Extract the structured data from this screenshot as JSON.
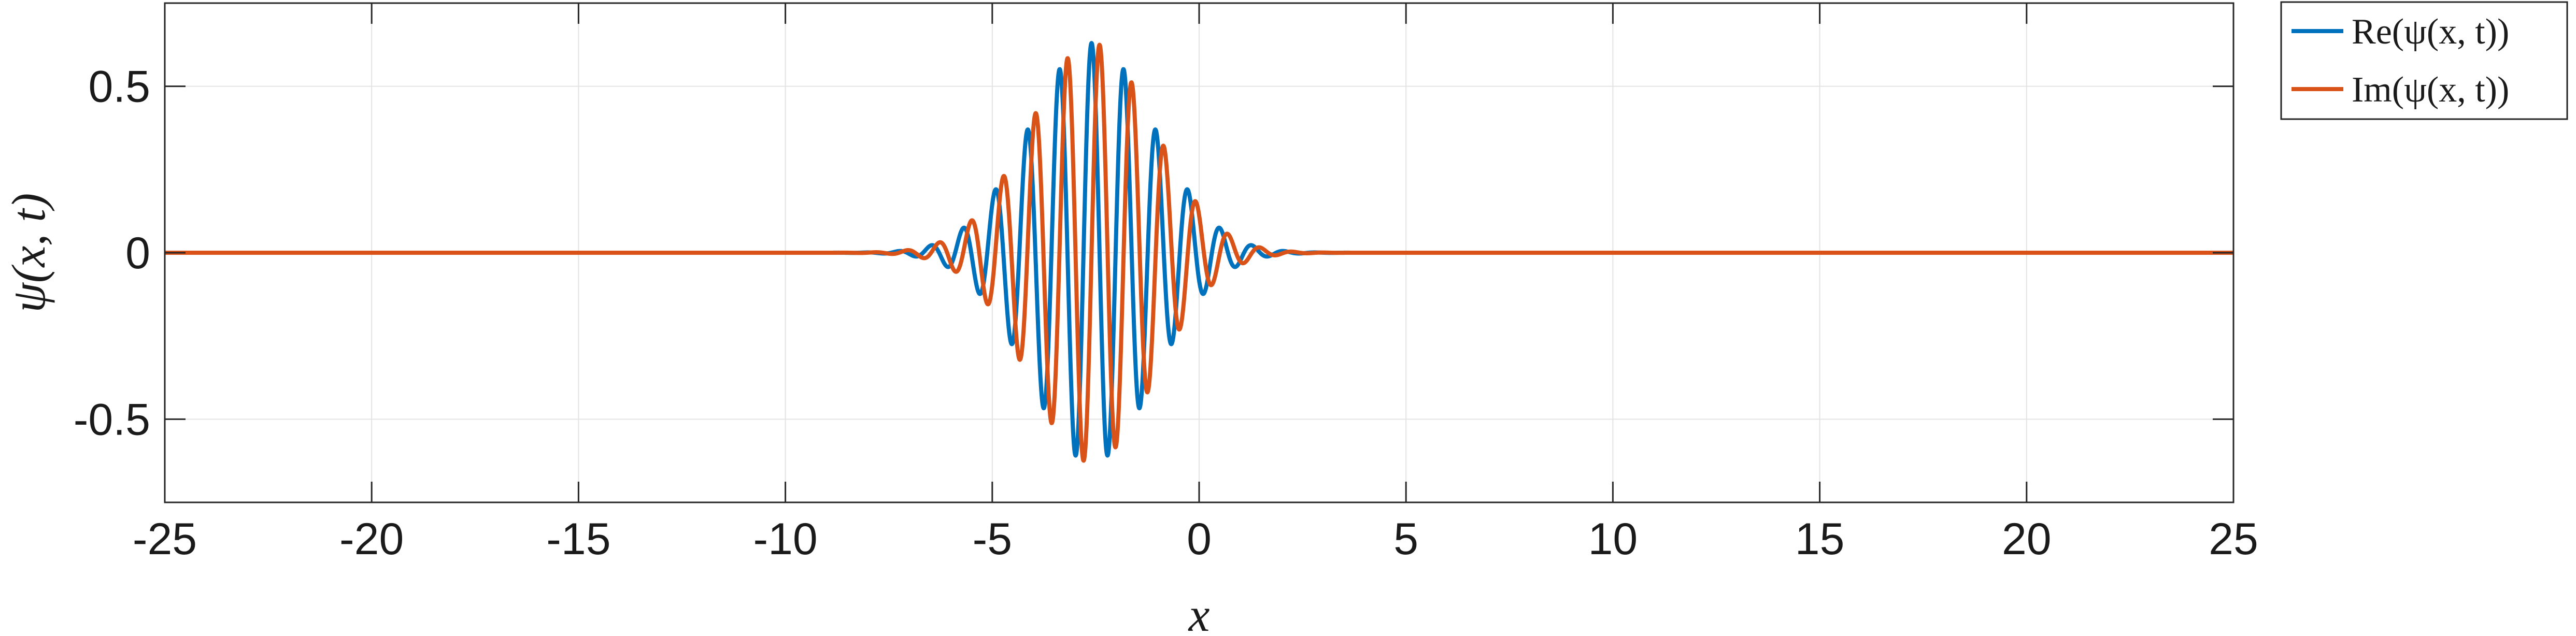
{
  "chart_data": {
    "type": "line",
    "xlabel": "x",
    "ylabel": "ψ(x, t)",
    "xlim": [
      -25,
      25
    ],
    "ylim": [
      -0.75,
      0.75
    ],
    "xticks": [
      -25,
      -20,
      -15,
      -10,
      -5,
      0,
      5,
      10,
      15,
      20,
      25
    ],
    "xtick_labels": [
      "-25",
      "-20",
      "-15",
      "-10",
      "-5",
      "0",
      "5",
      "10",
      "15",
      "20",
      "25"
    ],
    "yticks": [
      -0.5,
      0,
      0.5
    ],
    "ytick_labels": [
      "-0.5",
      "0",
      "0.5"
    ],
    "grid": true,
    "legend": "outside-top-right",
    "wave_packet": {
      "center": -2.6,
      "amplitude": 0.63,
      "width_sigma": 1.5,
      "wavenumber": 8.1
    },
    "x_range_sampled": [
      -25,
      25
    ],
    "series": [
      {
        "name": "Re(ψ(x, t))",
        "color": "#0072BD",
        "component": "real"
      },
      {
        "name": "Im(ψ(x, t))",
        "color": "#D95319",
        "component": "imag"
      }
    ]
  }
}
